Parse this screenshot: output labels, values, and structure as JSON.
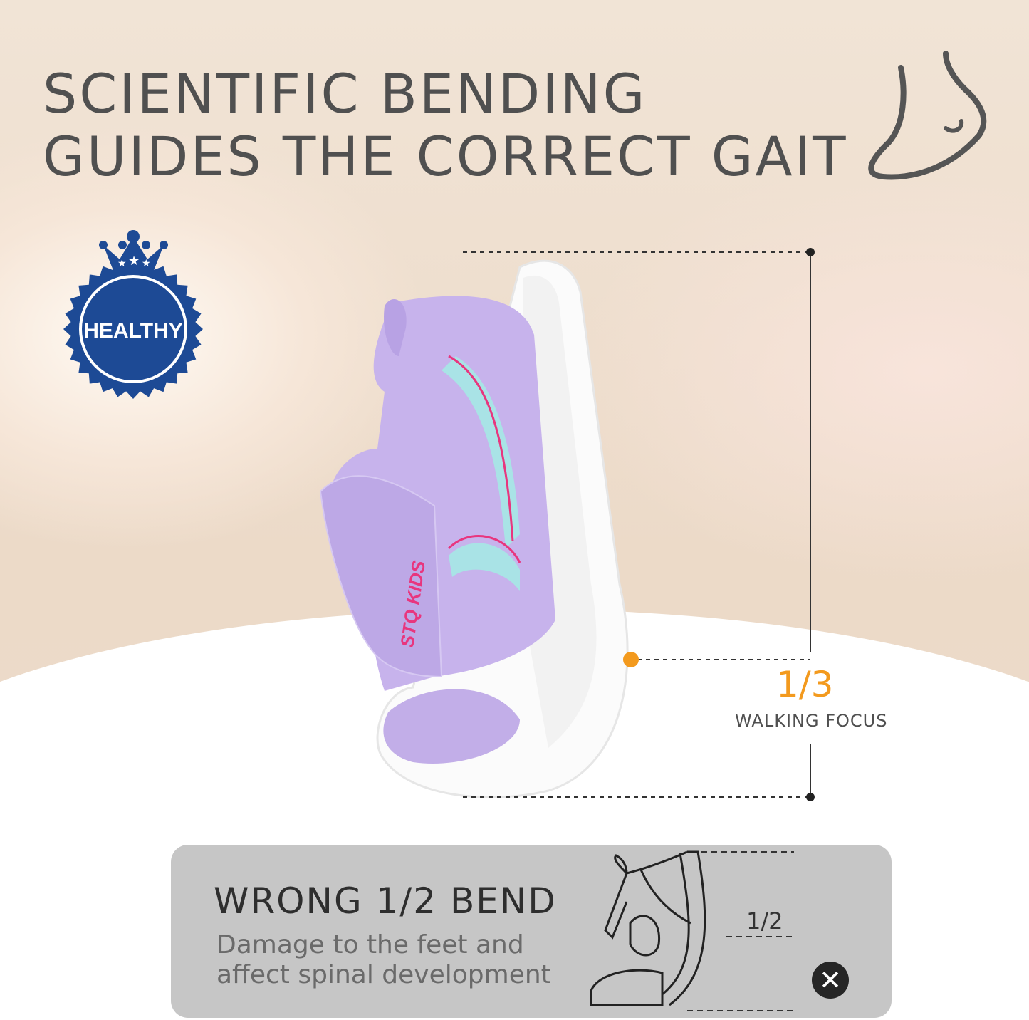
{
  "headline": {
    "line1": "SCIENTIFIC BENDING",
    "line2": "GUIDES THE CORRECT GAIT"
  },
  "badge": {
    "label": "HEALTHY",
    "color": "#1d4a95"
  },
  "product": {
    "brand_text": "STQ KIDS",
    "upper_color": "#c7b3ec",
    "stripe_color": "#a9e3e6",
    "accent_line_color": "#e8367e"
  },
  "measurement": {
    "fraction": "1/3",
    "caption": "WALKING FOCUS",
    "accent": "#f39a1e"
  },
  "comparison": {
    "title": "WRONG 1/2 BEND",
    "description_line1": "Damage to the feet and",
    "description_line2": "affect spinal development",
    "fraction": "1/2",
    "status_icon": "x-icon"
  },
  "icons": {
    "foot": "foot-outline-icon"
  }
}
